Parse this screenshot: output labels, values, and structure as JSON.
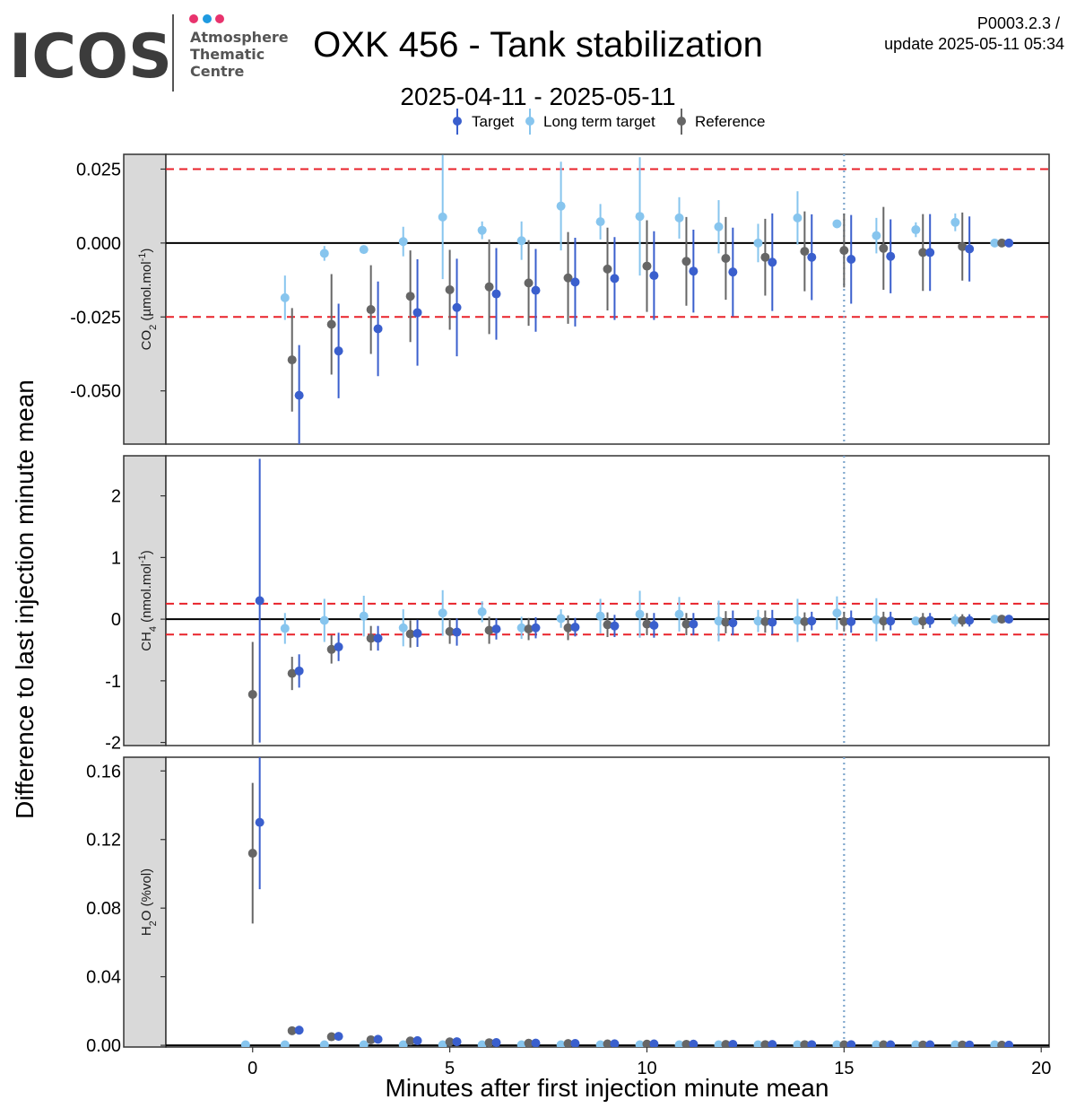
{
  "header": {
    "logo_text": "ICOS",
    "logo_sub": [
      "Atmosphere",
      "Thematic",
      "Centre"
    ],
    "title": "OXK 456 - Tank stabilization",
    "subtitle": "2025-04-11 - 2025-05-11",
    "code_line1": "P0003.2.3 /",
    "code_line2": "update  2025-05-11 05:34"
  },
  "logo_colors": {
    "dots": [
      "#e8336d",
      "#1f9ae0",
      "#e8336d"
    ]
  },
  "chart_data": {
    "type": "scatter",
    "xlabel": "Minutes after first injection minute mean",
    "ylabel": "Difference to last injection minute mean",
    "xlim": [
      -2.2,
      20.2
    ],
    "xticks": [
      0,
      5,
      10,
      15,
      20
    ],
    "xtick_labels": [
      "0",
      "5",
      "10",
      "15",
      "20"
    ],
    "vline_x": 15,
    "legend": {
      "position": "top",
      "entries": [
        {
          "name": "Target",
          "color": "#3a5fcd"
        },
        {
          "name": "Long term target",
          "color": "#87c5ee"
        },
        {
          "name": "Reference",
          "color": "#666666"
        }
      ]
    },
    "series_offsets": {
      "Long term target": -0.18,
      "Reference": 0.0,
      "Target": 0.18
    },
    "panels": [
      {
        "strip_label": "CO2 (µmol.mol-1)",
        "strip": {
          "pre": "CO",
          "sub": "2",
          "mid": " (µmol.mol",
          "sup": "-1",
          "post": ")"
        },
        "ylim": [
          -0.068,
          0.03
        ],
        "yticks": [
          -0.05,
          -0.025,
          0.0,
          0.025
        ],
        "ytick_labels": [
          "-0.050",
          "-0.025",
          "0.000",
          "0.025"
        ],
        "threshold": 0.025,
        "series": [
          {
            "name": "Long term target",
            "x": [
              1,
              2,
              3,
              4,
              5,
              6,
              7,
              8,
              9,
              10,
              11,
              12,
              13,
              14,
              15,
              16,
              17,
              18,
              19
            ],
            "y": [
              -0.0185,
              -0.0035,
              -0.0022,
              0.0005,
              0.0088,
              0.0043,
              0.0008,
              0.0125,
              0.0072,
              0.009,
              0.0085,
              0.0055,
              0.0,
              0.0085,
              0.0065,
              0.0025,
              0.0045,
              0.007,
              0.0
            ],
            "err": [
              0.0075,
              0.0025,
              0.001,
              0.005,
              0.021,
              0.003,
              0.0065,
              0.015,
              0.006,
              0.02,
              0.007,
              0.009,
              0.0065,
              0.009,
              0.001,
              0.006,
              0.0025,
              0.003,
              0.0007
            ]
          },
          {
            "name": "Reference",
            "x": [
              1,
              2,
              3,
              4,
              5,
              6,
              7,
              8,
              9,
              10,
              11,
              12,
              13,
              14,
              15,
              16,
              17,
              18,
              19
            ],
            "y": [
              -0.0395,
              -0.0275,
              -0.0225,
              -0.018,
              -0.0158,
              -0.0148,
              -0.0135,
              -0.0118,
              -0.0088,
              -0.0078,
              -0.0062,
              -0.0052,
              -0.0048,
              -0.0028,
              -0.0025,
              -0.0018,
              -0.0032,
              -0.0012,
              0.0
            ],
            "err": [
              0.0175,
              0.017,
              0.015,
              0.0155,
              0.0135,
              0.016,
              0.0145,
              0.0155,
              0.014,
              0.0155,
              0.015,
              0.014,
              0.013,
              0.0135,
              0.0125,
              0.014,
              0.013,
              0.0115,
              0.0007
            ]
          },
          {
            "name": "Target",
            "x": [
              1,
              2,
              3,
              4,
              5,
              6,
              7,
              8,
              9,
              10,
              11,
              12,
              13,
              14,
              15,
              16,
              17,
              18,
              19
            ],
            "y": [
              -0.0515,
              -0.0365,
              -0.029,
              -0.0235,
              -0.0218,
              -0.0172,
              -0.016,
              -0.0132,
              -0.012,
              -0.011,
              -0.0095,
              -0.0098,
              -0.0065,
              -0.0048,
              -0.0055,
              -0.0045,
              -0.0032,
              -0.002,
              0.0
            ],
            "err": [
              0.017,
              0.016,
              0.016,
              0.018,
              0.0165,
              0.0155,
              0.014,
              0.015,
              0.014,
              0.015,
              0.014,
              0.015,
              0.0165,
              0.0145,
              0.015,
              0.0125,
              0.013,
              0.011,
              0.0007
            ]
          }
        ]
      },
      {
        "strip_label": "CH4 (nmol.mol-1)",
        "strip": {
          "pre": "CH",
          "sub": "4",
          "mid": " (nmol.mol",
          "sup": "-1",
          "post": ")"
        },
        "ylim": [
          -2.05,
          2.65
        ],
        "yticks": [
          -2,
          -1,
          0,
          1,
          2
        ],
        "ytick_labels": [
          "-2",
          "-1",
          "0",
          "1",
          "2"
        ],
        "threshold": 0.25,
        "series": [
          {
            "name": "Long term target",
            "x": [
              1,
              2,
              3,
              4,
              5,
              6,
              7,
              8,
              9,
              10,
              11,
              12,
              13,
              14,
              15,
              16,
              17,
              18,
              19
            ],
            "y": [
              -0.15,
              -0.02,
              0.05,
              -0.14,
              0.1,
              0.12,
              -0.14,
              0.01,
              0.05,
              0.08,
              0.08,
              -0.03,
              -0.03,
              -0.02,
              0.1,
              -0.01,
              -0.03,
              -0.02,
              0.0
            ],
            "err": [
              0.25,
              0.35,
              0.33,
              0.3,
              0.37,
              0.17,
              0.18,
              0.15,
              0.28,
              0.38,
              0.28,
              0.33,
              0.18,
              0.35,
              0.27,
              0.35,
              0.07,
              0.1,
              0.03
            ]
          },
          {
            "name": "Reference",
            "x": [
              0,
              1,
              2,
              3,
              4,
              5,
              6,
              7,
              8,
              9,
              10,
              11,
              12,
              13,
              14,
              15,
              16,
              17,
              18,
              19
            ],
            "y": [
              -1.22,
              -0.88,
              -0.49,
              -0.31,
              -0.24,
              -0.2,
              -0.18,
              -0.16,
              -0.14,
              -0.09,
              -0.08,
              -0.08,
              -0.05,
              -0.04,
              -0.04,
              -0.04,
              -0.03,
              -0.03,
              -0.02,
              0.0
            ],
            "err": [
              0.85,
              0.27,
              0.23,
              0.2,
              0.22,
              0.2,
              0.22,
              0.18,
              0.2,
              0.2,
              0.18,
              0.18,
              0.18,
              0.18,
              0.15,
              0.16,
              0.15,
              0.13,
              0.1,
              0.03
            ]
          },
          {
            "name": "Target",
            "x": [
              0,
              1,
              2,
              3,
              4,
              5,
              6,
              7,
              8,
              9,
              10,
              11,
              12,
              13,
              14,
              15,
              16,
              17,
              18,
              19
            ],
            "y": [
              0.3,
              -0.84,
              -0.45,
              -0.31,
              -0.23,
              -0.21,
              -0.16,
              -0.14,
              -0.13,
              -0.11,
              -0.1,
              -0.08,
              -0.06,
              -0.05,
              -0.03,
              -0.04,
              -0.03,
              -0.02,
              -0.02,
              0.0
            ],
            "err": [
              2.3,
              0.27,
              0.23,
              0.2,
              0.22,
              0.22,
              0.17,
              0.17,
              0.15,
              0.18,
              0.2,
              0.18,
              0.2,
              0.2,
              0.15,
              0.18,
              0.15,
              0.12,
              0.1,
              0.03
            ]
          }
        ]
      },
      {
        "strip_label": "H2O (%vol)",
        "strip": {
          "pre": "H",
          "sub": "2",
          "mid": "O (%vol)",
          "sup": "",
          "post": ""
        },
        "ylim": [
          -0.001,
          0.168
        ],
        "yticks": [
          0.0,
          0.04,
          0.08,
          0.12,
          0.16
        ],
        "ytick_labels": [
          "0.00",
          "0.04",
          "0.08",
          "0.12",
          "0.16"
        ],
        "threshold": null,
        "series": [
          {
            "name": "Long term target",
            "x": [
              0,
              1,
              2,
              3,
              4,
              5,
              6,
              7,
              8,
              9,
              10,
              11,
              12,
              13,
              14,
              15,
              16,
              17,
              18,
              19
            ],
            "y": [
              0.0003,
              0.0003,
              0.0003,
              0.0003,
              0.0003,
              0.0003,
              0.0003,
              0.0003,
              0.0003,
              0.0003,
              0.0003,
              0.0003,
              0.0003,
              0.0003,
              0.0003,
              0.0003,
              0.0003,
              0.0003,
              0.0003,
              0.0003
            ],
            "err": [
              0.0002,
              0.0002,
              0.0002,
              0.0002,
              0.0002,
              0.0002,
              0.0002,
              0.0002,
              0.0002,
              0.0002,
              0.0002,
              0.0002,
              0.0002,
              0.0002,
              0.0002,
              0.0002,
              0.0002,
              0.0002,
              0.0002,
              0.0002
            ]
          },
          {
            "name": "Reference",
            "x": [
              0,
              1,
              2,
              3,
              4,
              5,
              6,
              7,
              8,
              9,
              10,
              11,
              12,
              13,
              14,
              15,
              16,
              17,
              18,
              19
            ],
            "y": [
              0.112,
              0.0085,
              0.005,
              0.0032,
              0.0025,
              0.002,
              0.0015,
              0.0012,
              0.001,
              0.0008,
              0.0007,
              0.0006,
              0.0005,
              0.0004,
              0.0004,
              0.0003,
              0.0003,
              0.0002,
              0.0002,
              0.0001
            ],
            "err": [
              0.041,
              0.0008,
              0.0005,
              0.0004,
              0.0003,
              0.0003,
              0.0002,
              0.0002,
              0.0002,
              0.0002,
              0.0002,
              0.0002,
              0.0002,
              0.0002,
              0.0002,
              0.0002,
              0.0002,
              0.0002,
              0.0002,
              0.0001
            ]
          },
          {
            "name": "Target",
            "x": [
              0,
              1,
              2,
              3,
              4,
              5,
              6,
              7,
              8,
              9,
              10,
              11,
              12,
              13,
              14,
              15,
              16,
              17,
              18,
              19
            ],
            "y": [
              0.13,
              0.0088,
              0.0052,
              0.0035,
              0.0027,
              0.0021,
              0.0016,
              0.0013,
              0.0011,
              0.0009,
              0.0008,
              0.0007,
              0.0006,
              0.0005,
              0.0004,
              0.0004,
              0.0003,
              0.0003,
              0.0002,
              0.0001
            ],
            "err": [
              0.039,
              0.0008,
              0.0005,
              0.0004,
              0.0003,
              0.0003,
              0.0002,
              0.0002,
              0.0002,
              0.0002,
              0.0002,
              0.0002,
              0.0002,
              0.0002,
              0.0002,
              0.0002,
              0.0002,
              0.0002,
              0.0002,
              0.0001
            ]
          }
        ]
      }
    ]
  }
}
